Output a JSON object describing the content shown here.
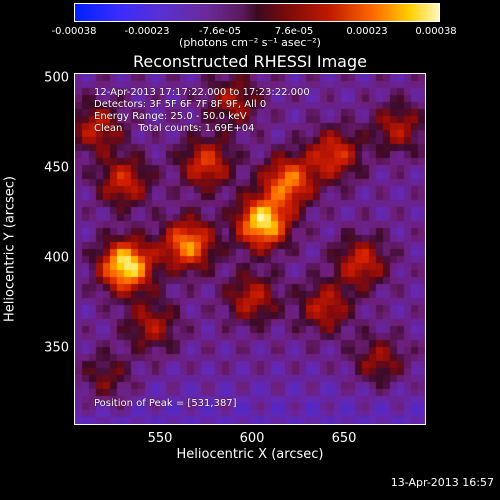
{
  "chart_data": {
    "type": "heatmap",
    "title": "Reconstructed RHESSI Image",
    "xlabel": "Heliocentric X (arcsec)",
    "ylabel": "Heliocentric Y (arcsec)",
    "xlim": [
      503,
      695
    ],
    "ylim": [
      305,
      500
    ],
    "x_ticks": [
      "550",
      "600",
      "650"
    ],
    "x_tick_values": [
      550,
      600,
      650
    ],
    "y_ticks": [
      "500",
      "450",
      "400",
      "350"
    ],
    "y_tick_values": [
      500,
      450,
      400,
      350
    ],
    "colorbar": {
      "ticks": [
        "-0.00038",
        "-0.00023",
        "-7.6e-05",
        "7.6e-05",
        "0.00023",
        "0.00038"
      ],
      "tick_values": [
        -0.00038,
        -0.00023,
        -7.6e-05,
        7.6e-05,
        0.00023,
        0.00038
      ],
      "unit_label": "(photons cm⁻² s⁻¹ asec⁻²)",
      "range": [
        -0.00038,
        0.00038
      ]
    },
    "annotations": [
      "12-Apr-2013 17:17:22.000 to 17:23:22.000",
      "Detectors: 3F 5F 6F 7F 8F 9F, All 0",
      "Energy Range: 25.0 - 50.0 keV",
      "Clean     Total counts: 1.69E+04"
    ],
    "peak_label": "Position of Peak = [531,387]",
    "peak": [
      531,
      387
    ],
    "sources": [
      {
        "x": 531,
        "y": 393,
        "intensity": 1.0
      },
      {
        "x": 606,
        "y": 417,
        "intensity": 0.95
      },
      {
        "x": 620,
        "y": 440,
        "intensity": 0.7
      },
      {
        "x": 565,
        "y": 405,
        "intensity": 0.75
      },
      {
        "x": 645,
        "y": 455,
        "intensity": 0.55
      },
      {
        "x": 575,
        "y": 450,
        "intensity": 0.55
      },
      {
        "x": 660,
        "y": 395,
        "intensity": 0.5
      },
      {
        "x": 530,
        "y": 440,
        "intensity": 0.5
      },
      {
        "x": 600,
        "y": 375,
        "intensity": 0.45
      },
      {
        "x": 515,
        "y": 470,
        "intensity": 0.45
      },
      {
        "x": 680,
        "y": 470,
        "intensity": 0.4
      },
      {
        "x": 545,
        "y": 360,
        "intensity": 0.4
      },
      {
        "x": 640,
        "y": 370,
        "intensity": 0.45
      },
      {
        "x": 590,
        "y": 485,
        "intensity": 0.4
      },
      {
        "x": 670,
        "y": 340,
        "intensity": 0.35
      },
      {
        "x": 520,
        "y": 330,
        "intensity": 0.3
      }
    ]
  },
  "footer": {
    "date": "13-Apr-2013 16:57"
  }
}
